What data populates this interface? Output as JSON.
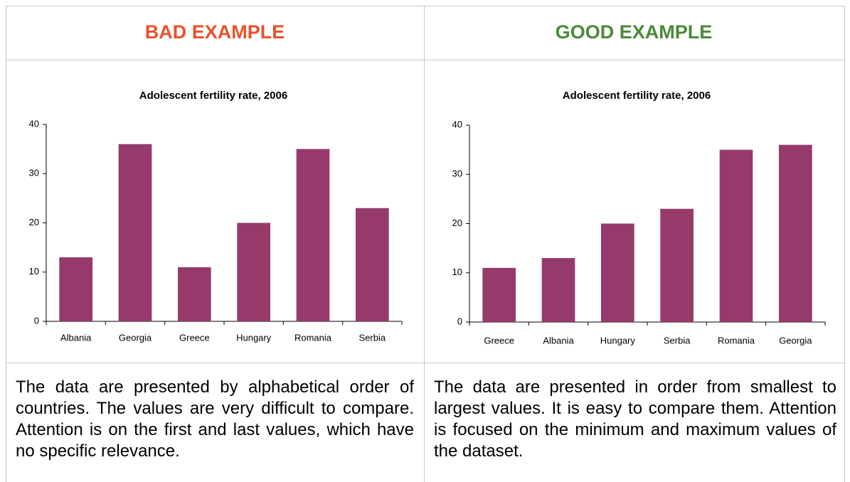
{
  "headers": [
    "BAD EXAMPLE",
    "GOOD EXAMPLE"
  ],
  "chart_data": [
    {
      "type": "bar",
      "title": "Adolescent fertility rate, 2006",
      "categories": [
        "Albania",
        "Georgia",
        "Greece",
        "Hungary",
        "Romania",
        "Serbia"
      ],
      "values": [
        13,
        36,
        11,
        20,
        35,
        23
      ],
      "color": "#953a6b",
      "ylim": [
        0,
        40
      ],
      "yticks": [
        0,
        10,
        20,
        30,
        40
      ]
    },
    {
      "type": "bar",
      "title": "Adolescent fertility rate, 2006",
      "categories": [
        "Greece",
        "Albania",
        "Hungary",
        "Serbia",
        "Romania",
        "Georgia"
      ],
      "values": [
        11,
        13,
        20,
        23,
        35,
        36
      ],
      "color": "#953a6b",
      "ylim": [
        0,
        40
      ],
      "yticks": [
        0,
        10,
        20,
        30,
        40
      ]
    }
  ],
  "captions": [
    "The data are presented by alphabetical order of countries. The values are very difficult to compare. Attention is on the first and last values, which have no specific relevance.",
    "The data are presented in order from smallest to largest values. It is easy to compare them. Attention is focused on the minimum and maximum values of the dataset."
  ]
}
